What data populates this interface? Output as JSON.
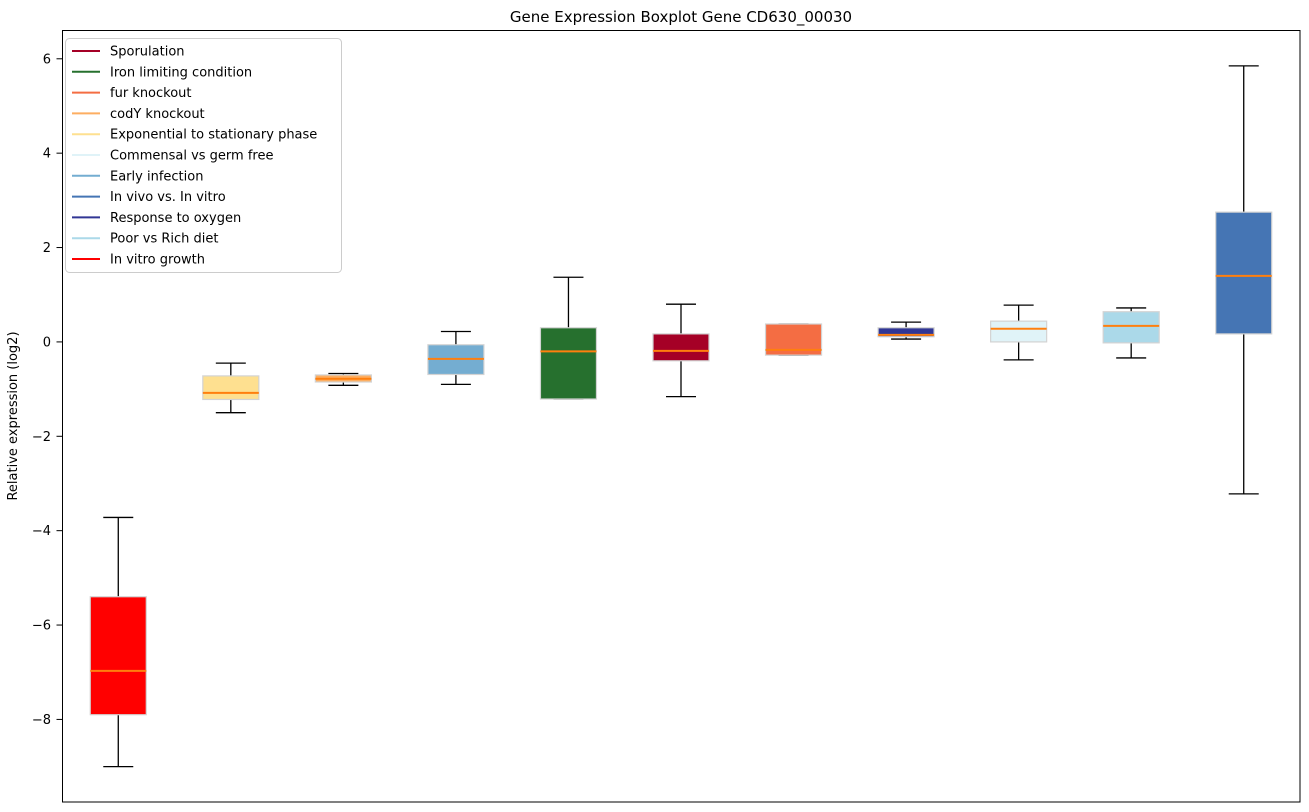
{
  "figure": {
    "title": "Gene Expression Boxplot Gene CD630_00030",
    "ylabel": "Relative expression (log2)"
  },
  "chart_data": {
    "type": "boxplot",
    "title": "Gene Expression Boxplot Gene CD630_00030",
    "xlabel": "",
    "ylabel": "Relative expression (log2)",
    "ylim": [
      -9.75,
      6.61
    ],
    "yticks": [
      6,
      4,
      2,
      0,
      -2,
      -4,
      -6,
      -8
    ],
    "grid": false,
    "legend_position": "upper left",
    "style": {
      "median_color": "#ff7f0e",
      "whisker_color": "#000000",
      "box_edge_color": "#d3d3d3",
      "legend_border_color": "#cccccc",
      "axes_edge_color": "#000000",
      "background_color": "#ffffff"
    },
    "boxes": [
      {
        "name": "In vitro growth",
        "color": "#ff0000",
        "whisker_low": -9.0,
        "q1": -7.9,
        "median": -6.97,
        "q3": -5.4,
        "whisker_high": -3.72
      },
      {
        "name": "Exponential to stationary phase",
        "color": "#fee090",
        "whisker_low": -1.5,
        "q1": -1.22,
        "median": -1.08,
        "q3": -0.72,
        "whisker_high": -0.45
      },
      {
        "name": "codY knockout",
        "color": "#fdae61",
        "whisker_low": -0.92,
        "q1": -0.85,
        "median": -0.78,
        "q3": -0.7,
        "whisker_high": -0.67
      },
      {
        "name": "Early infection",
        "color": "#74add1",
        "whisker_low": -0.9,
        "q1": -0.69,
        "median": -0.36,
        "q3": -0.06,
        "whisker_high": 0.22
      },
      {
        "name": "Iron limiting condition",
        "color": "#26702e",
        "whisker_low": -1.21,
        "q1": -1.21,
        "median": -0.2,
        "q3": 0.3,
        "whisker_high": 1.37
      },
      {
        "name": "Sporulation",
        "color": "#a50026",
        "whisker_low": -1.16,
        "q1": -0.4,
        "median": -0.19,
        "q3": 0.17,
        "whisker_high": 0.8
      },
      {
        "name": "fur knockout",
        "color": "#f46d43",
        "whisker_low": -0.28,
        "q1": -0.28,
        "median": -0.17,
        "q3": 0.38,
        "whisker_high": 0.38
      },
      {
        "name": "Response to oxygen",
        "color": "#313695",
        "whisker_low": 0.06,
        "q1": 0.11,
        "median": 0.15,
        "q3": 0.3,
        "whisker_high": 0.42
      },
      {
        "name": "Commensal vs germ free",
        "color": "#e0f3f8",
        "whisker_low": -0.38,
        "q1": 0.0,
        "median": 0.28,
        "q3": 0.44,
        "whisker_high": 0.78
      },
      {
        "name": "Poor vs Rich diet",
        "color": "#abd9e9",
        "whisker_low": -0.34,
        "q1": -0.02,
        "median": 0.34,
        "q3": 0.64,
        "whisker_high": 0.72
      },
      {
        "name": "In vivo vs. In vitro",
        "color": "#4575b4",
        "whisker_low": -3.22,
        "q1": 0.17,
        "median": 1.4,
        "q3": 2.75,
        "whisker_high": 5.85
      }
    ],
    "legend": [
      {
        "label": "Sporulation",
        "color": "#a50026"
      },
      {
        "label": "Iron limiting condition",
        "color": "#26702e"
      },
      {
        "label": "fur knockout",
        "color": "#f46d43"
      },
      {
        "label": "codY knockout",
        "color": "#fdae61"
      },
      {
        "label": "Exponential to stationary phase",
        "color": "#fee090"
      },
      {
        "label": "Commensal vs germ free",
        "color": "#e0f3f8"
      },
      {
        "label": "Early infection",
        "color": "#74add1"
      },
      {
        "label": "In vivo vs. In vitro",
        "color": "#4575b4"
      },
      {
        "label": "Response to oxygen",
        "color": "#313695"
      },
      {
        "label": "Poor vs Rich diet",
        "color": "#abd9e9"
      },
      {
        "label": "In vitro growth",
        "color": "#ff0000"
      }
    ]
  }
}
